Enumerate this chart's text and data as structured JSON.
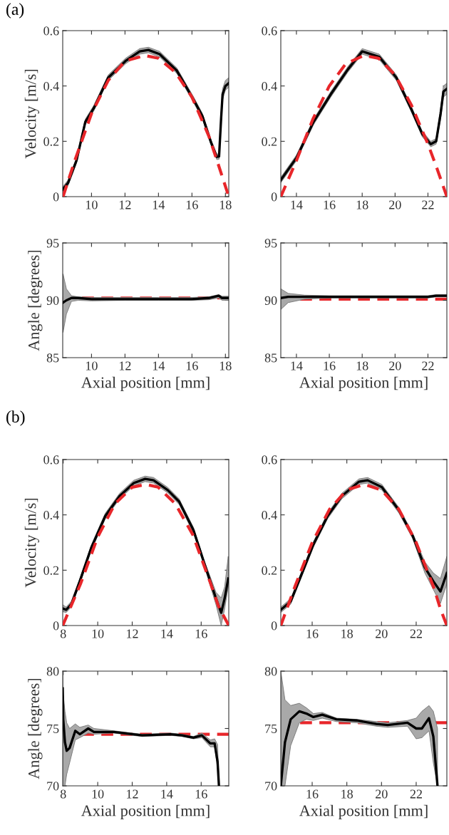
{
  "chart_data": [
    {
      "type": "line",
      "ylabel": "Velocity [m/s]",
      "annotations": [
        "(a)"
      ],
      "xlim": [
        8.28,
        18.2
      ],
      "xticks": [
        10,
        12,
        14,
        16,
        18
      ],
      "ylim": [
        0,
        0.6
      ],
      "yticks": [
        0,
        0.2,
        0.4,
        0.6
      ],
      "grid": false,
      "series": [
        {
          "color": "#000000",
          "line_style": "solid",
          "x": [
            8.28,
            8.6,
            9.1,
            9.63,
            10.14,
            11.0,
            12.03,
            12.88,
            13.4,
            14.07,
            15.1,
            16.1,
            16.63,
            17.14,
            17.48,
            17.62,
            17.74,
            17.83,
            18.0,
            18.2
          ],
          "values": [
            0.026,
            0.05,
            0.13,
            0.27,
            0.32,
            0.43,
            0.49,
            0.525,
            0.53,
            0.515,
            0.455,
            0.35,
            0.29,
            0.196,
            0.144,
            0.145,
            0.28,
            0.37,
            0.4,
            0.41
          ],
          "lower": [
            0.016,
            0.04,
            0.12,
            0.26,
            0.31,
            0.42,
            0.48,
            0.515,
            0.52,
            0.505,
            0.445,
            0.34,
            0.28,
            0.186,
            0.134,
            0.135,
            0.26,
            0.35,
            0.385,
            0.395
          ],
          "upper": [
            0.036,
            0.06,
            0.14,
            0.28,
            0.33,
            0.44,
            0.5,
            0.535,
            0.54,
            0.525,
            0.465,
            0.36,
            0.3,
            0.206,
            0.154,
            0.155,
            0.3,
            0.39,
            0.42,
            0.43
          ]
        },
        {
          "color": "#e8262a",
          "line_style": "dashed",
          "x": [
            8.3,
            9,
            10,
            11,
            12,
            13.2,
            14,
            15,
            16,
            17,
            17.5,
            18.2
          ],
          "values": [
            0,
            0.13,
            0.3,
            0.42,
            0.49,
            0.51,
            0.5,
            0.45,
            0.36,
            0.22,
            0.13,
            0
          ]
        }
      ]
    },
    {
      "type": "line",
      "xlim": [
        13.05,
        23.15
      ],
      "xticks": [
        14,
        16,
        18,
        20,
        22
      ],
      "ylim": [
        0,
        0.6
      ],
      "yticks": [
        0,
        0.2,
        0.4,
        0.6
      ],
      "grid": false,
      "series": [
        {
          "color": "#000000",
          "line_style": "solid",
          "x": [
            13.05,
            14,
            15.04,
            16.09,
            17.13,
            18.0,
            19.04,
            20.08,
            20.96,
            21.65,
            22.17,
            22.5,
            22.77,
            22.94,
            23.15
          ],
          "values": [
            0.06,
            0.14,
            0.27,
            0.37,
            0.46,
            0.525,
            0.505,
            0.43,
            0.32,
            0.227,
            0.19,
            0.2,
            0.3,
            0.38,
            0.39
          ],
          "lower": [
            0.05,
            0.13,
            0.26,
            0.36,
            0.45,
            0.515,
            0.495,
            0.42,
            0.31,
            0.217,
            0.18,
            0.19,
            0.28,
            0.36,
            0.37
          ],
          "upper": [
            0.07,
            0.15,
            0.28,
            0.38,
            0.47,
            0.535,
            0.515,
            0.44,
            0.33,
            0.237,
            0.2,
            0.21,
            0.32,
            0.4,
            0.41
          ]
        },
        {
          "color": "#e8262a",
          "line_style": "dashed",
          "x": [
            13.05,
            14,
            15,
            16,
            17,
            18.1,
            19,
            20,
            21,
            22,
            22.5,
            23.15
          ],
          "values": [
            0,
            0.13,
            0.28,
            0.4,
            0.48,
            0.51,
            0.5,
            0.44,
            0.33,
            0.19,
            0.11,
            0
          ]
        }
      ]
    },
    {
      "type": "line",
      "xlabel": "Axial position [mm]",
      "ylabel": "Angle [degrees]",
      "xlim": [
        8.28,
        18.2
      ],
      "xticks": [
        10,
        12,
        14,
        16,
        18
      ],
      "ylim": [
        85,
        95
      ],
      "yticks": [
        85,
        90,
        95
      ],
      "grid": false,
      "ref_lines": [
        {
          "axis": "y",
          "value": 90.2,
          "color": "#e8262a",
          "line_style": "dashed"
        }
      ],
      "series": [
        {
          "color": "#000000",
          "line_style": "solid",
          "x": [
            8.3,
            8.5,
            8.8,
            9.2,
            10,
            12,
            14,
            16,
            17,
            17.6,
            17.8,
            18.2
          ],
          "values": [
            89.8,
            90.0,
            90.2,
            90.2,
            90.1,
            90.1,
            90.1,
            90.1,
            90.2,
            90.4,
            90.2,
            90.2
          ],
          "lower": [
            87.2,
            88.8,
            89.9,
            90.0,
            89.95,
            90.0,
            90.0,
            90.0,
            90.05,
            90.2,
            90.0,
            90.0
          ],
          "upper": [
            92.3,
            91.0,
            90.4,
            90.3,
            90.25,
            90.25,
            90.25,
            90.25,
            90.3,
            90.5,
            90.35,
            90.35
          ]
        }
      ]
    },
    {
      "type": "line",
      "xlabel": "Axial position [mm]",
      "xlim": [
        13.05,
        23.15
      ],
      "xticks": [
        14,
        16,
        18,
        20,
        22
      ],
      "ylim": [
        85,
        95
      ],
      "yticks": [
        85,
        90,
        95
      ],
      "grid": false,
      "ref_lines": [
        {
          "axis": "y",
          "value": 90.1,
          "color": "#e8262a",
          "line_style": "dashed"
        }
      ],
      "series": [
        {
          "color": "#000000",
          "line_style": "solid",
          "x": [
            13.05,
            13.5,
            14.5,
            16,
            18,
            20,
            22,
            22.5,
            23.15
          ],
          "values": [
            90.2,
            90.3,
            90.3,
            90.3,
            90.3,
            90.3,
            90.3,
            90.4,
            90.4
          ],
          "lower": [
            89.2,
            89.8,
            90.1,
            90.2,
            90.2,
            90.2,
            90.2,
            90.3,
            90.3
          ],
          "upper": [
            91.0,
            90.6,
            90.45,
            90.4,
            90.4,
            90.4,
            90.4,
            90.5,
            90.5
          ]
        }
      ]
    },
    {
      "type": "line",
      "ylabel": "Velocity [m/s]",
      "annotations": [
        "(b)"
      ],
      "xlim": [
        7.97,
        17.6
      ],
      "xticks": [
        8,
        10,
        12,
        14,
        16
      ],
      "ylim": [
        0,
        0.6
      ],
      "yticks": [
        0,
        0.2,
        0.4,
        0.6
      ],
      "grid": false,
      "series": [
        {
          "color": "#000000",
          "line_style": "solid",
          "x": [
            7.97,
            8.17,
            8.47,
            8.96,
            9.62,
            10.44,
            11.27,
            12.09,
            12.75,
            13.24,
            14.07,
            14.72,
            15.55,
            16.2,
            16.86,
            17.16,
            17.36,
            17.57
          ],
          "values": [
            0.062,
            0.057,
            0.077,
            0.16,
            0.28,
            0.396,
            0.468,
            0.515,
            0.53,
            0.525,
            0.489,
            0.448,
            0.345,
            0.221,
            0.098,
            0.046,
            0.098,
            0.17
          ],
          "lower": [
            0.05,
            0.047,
            0.067,
            0.15,
            0.27,
            0.386,
            0.458,
            0.505,
            0.52,
            0.515,
            0.479,
            0.438,
            0.335,
            0.211,
            0.075,
            0.0,
            0.06,
            0.14
          ],
          "upper": [
            0.075,
            0.067,
            0.087,
            0.17,
            0.29,
            0.406,
            0.478,
            0.525,
            0.54,
            0.535,
            0.499,
            0.458,
            0.355,
            0.231,
            0.12,
            0.1,
            0.14,
            0.25
          ]
        },
        {
          "color": "#e8262a",
          "line_style": "dashed",
          "x": [
            7.97,
            9,
            10,
            11,
            12,
            12.8,
            13.5,
            14.5,
            15.5,
            16.5,
            17,
            17.6
          ],
          "values": [
            0,
            0.15,
            0.32,
            0.44,
            0.5,
            0.51,
            0.5,
            0.44,
            0.33,
            0.16,
            0.07,
            0
          ]
        }
      ]
    },
    {
      "type": "line",
      "xlim": [
        14.19,
        23.77
      ],
      "xticks": [
        16,
        18,
        20,
        22
      ],
      "ylim": [
        0,
        0.6
      ],
      "yticks": [
        0,
        0.2,
        0.4,
        0.6
      ],
      "grid": false,
      "series": [
        {
          "color": "#000000",
          "line_style": "solid",
          "x": [
            14.19,
            14.76,
            15.42,
            16.07,
            16.89,
            17.71,
            18.7,
            19.2,
            20.02,
            21.0,
            21.8,
            22.5,
            22.99,
            23.4,
            23.77
          ],
          "values": [
            0.057,
            0.087,
            0.19,
            0.293,
            0.396,
            0.468,
            0.52,
            0.525,
            0.5,
            0.417,
            0.324,
            0.21,
            0.16,
            0.123,
            0.19
          ],
          "lower": [
            0.047,
            0.077,
            0.18,
            0.283,
            0.386,
            0.458,
            0.51,
            0.515,
            0.49,
            0.407,
            0.314,
            0.19,
            0.13,
            0.08,
            0.15
          ],
          "upper": [
            0.067,
            0.097,
            0.2,
            0.303,
            0.406,
            0.478,
            0.53,
            0.535,
            0.51,
            0.427,
            0.334,
            0.23,
            0.19,
            0.17,
            0.25
          ]
        },
        {
          "color": "#e8262a",
          "line_style": "dashed",
          "x": [
            14.19,
            15,
            16,
            17,
            18,
            19,
            20,
            21,
            22,
            23,
            23.4,
            23.77
          ],
          "values": [
            0,
            0.14,
            0.3,
            0.42,
            0.49,
            0.51,
            0.49,
            0.42,
            0.3,
            0.14,
            0.06,
            0
          ]
        }
      ]
    },
    {
      "type": "line",
      "xlabel": "Axial position [mm]",
      "ylabel": "Angle [degrees]",
      "xlim": [
        7.97,
        17.6
      ],
      "xticks": [
        8,
        10,
        12,
        14,
        16
      ],
      "ylim": [
        70,
        80
      ],
      "yticks": [
        70,
        75,
        80
      ],
      "grid": false,
      "ref_lines": [
        {
          "axis": "y",
          "value": 74.5,
          "color": "#e8262a",
          "line_style": "dashed"
        }
      ],
      "series": [
        {
          "color": "#000000",
          "line_style": "solid",
          "x": [
            7.97,
            8.0,
            8.1,
            8.2,
            8.37,
            8.7,
            8.96,
            9.45,
            9.78,
            10.93,
            12.58,
            14.23,
            14.88,
            15.55,
            16.04,
            16.53,
            16.78,
            16.95,
            17.03
          ],
          "values": [
            78.5,
            75.8,
            73.8,
            73.05,
            73.3,
            74.8,
            74.5,
            75.0,
            74.7,
            74.7,
            74.4,
            74.5,
            74.4,
            74.2,
            74.4,
            73.7,
            73.7,
            72.1,
            70
          ],
          "lower": [
            70,
            70,
            70,
            71,
            72,
            74.0,
            74.2,
            74.6,
            74.5,
            74.6,
            74.3,
            74.4,
            74.3,
            74.1,
            74.2,
            73.4,
            73.4,
            71.5,
            70
          ],
          "upper": [
            80,
            78,
            76.5,
            75.5,
            75.0,
            75.4,
            75.1,
            75.3,
            75.0,
            74.8,
            74.5,
            74.6,
            74.5,
            74.3,
            74.6,
            74.0,
            74.1,
            73.6,
            70.5
          ]
        }
      ]
    },
    {
      "type": "line",
      "xlabel": "Axial position [mm]",
      "xlim": [
        14.19,
        23.77
      ],
      "xticks": [
        16,
        18,
        20,
        22
      ],
      "ylim": [
        70,
        80
      ],
      "yticks": [
        70,
        75,
        80
      ],
      "grid": false,
      "ref_lines": [
        {
          "axis": "y",
          "value": 75.5,
          "color": "#e8262a",
          "line_style": "dashed"
        }
      ],
      "series": [
        {
          "color": "#000000",
          "line_style": "solid",
          "x": [
            14.19,
            14.43,
            14.76,
            15.26,
            15.67,
            16.07,
            16.58,
            17.4,
            18.55,
            19.7,
            20.36,
            21.5,
            22.0,
            22.33,
            22.74,
            22.99,
            23.23
          ],
          "values": [
            70,
            73.8,
            75.8,
            76.5,
            76.3,
            76.0,
            76.2,
            75.8,
            75.7,
            75.4,
            75.3,
            75.5,
            75.0,
            75.0,
            75.9,
            74.3,
            70
          ],
          "lower": [
            70,
            70,
            73.5,
            75.5,
            75.8,
            75.7,
            75.9,
            75.6,
            75.5,
            75.2,
            75.1,
            75.2,
            74.1,
            74.2,
            74.8,
            72,
            70
          ],
          "upper": [
            80,
            77.5,
            77.0,
            77.2,
            76.8,
            76.3,
            76.4,
            75.9,
            75.8,
            75.6,
            75.5,
            75.7,
            75.9,
            76.5,
            77.0,
            76.5,
            75
          ]
        }
      ]
    }
  ]
}
